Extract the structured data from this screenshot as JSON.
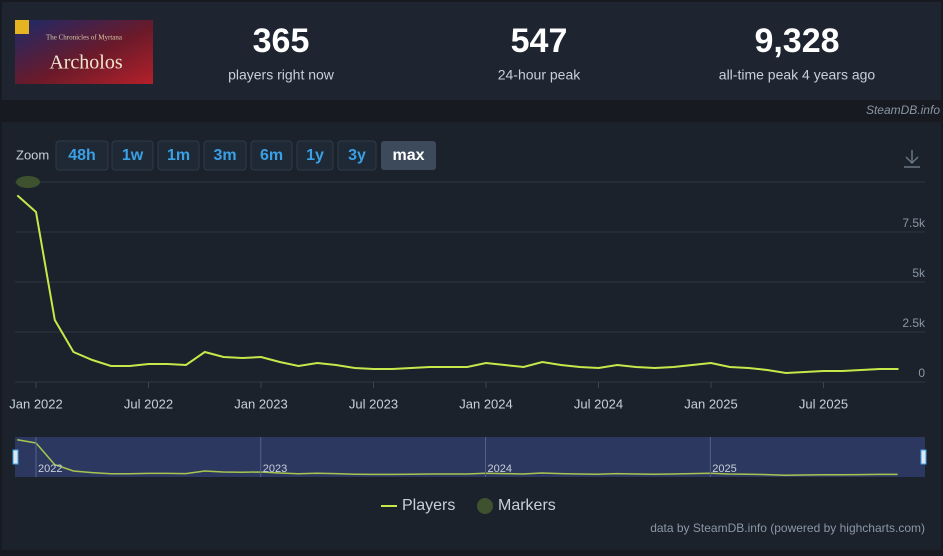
{
  "header": {
    "logo": {
      "subtitle": "The Chronicles of Myrtana",
      "title": "Archolos"
    },
    "stats": [
      {
        "value": "365",
        "label": "players right now"
      },
      {
        "value": "547",
        "label": "24-hour peak"
      },
      {
        "value": "9,328",
        "label": "all-time peak 4 years ago"
      }
    ],
    "source": "SteamDB.info"
  },
  "zoom": {
    "label": "Zoom",
    "buttons": [
      "48h",
      "1w",
      "1m",
      "3m",
      "6m",
      "1y",
      "3y",
      "max"
    ],
    "active_index": 7
  },
  "credit": "data by SteamDB.info (powered by highcharts.com)",
  "chart_data": {
    "type": "line",
    "x": [
      "2021-12",
      "2022-01",
      "2022-02",
      "2022-03",
      "2022-04",
      "2022-05",
      "2022-06",
      "2022-07",
      "2022-08",
      "2022-09",
      "2022-10",
      "2022-11",
      "2022-12",
      "2023-01",
      "2023-02",
      "2023-03",
      "2023-04",
      "2023-05",
      "2023-06",
      "2023-07",
      "2023-08",
      "2023-09",
      "2023-10",
      "2023-11",
      "2023-12",
      "2024-01",
      "2024-02",
      "2024-03",
      "2024-04",
      "2024-05",
      "2024-06",
      "2024-07",
      "2024-08",
      "2024-09",
      "2024-10",
      "2024-11",
      "2024-12",
      "2025-01",
      "2025-02",
      "2025-03",
      "2025-04",
      "2025-05",
      "2025-06",
      "2025-07",
      "2025-08",
      "2025-09",
      "2025-10",
      "2025-11"
    ],
    "series": [
      {
        "name": "Players",
        "color": "#c6e84a",
        "values": [
          9328,
          8500,
          3100,
          1500,
          1100,
          800,
          800,
          900,
          900,
          850,
          1500,
          1250,
          1200,
          1250,
          1000,
          800,
          950,
          850,
          700,
          650,
          650,
          700,
          750,
          750,
          750,
          950,
          850,
          750,
          1000,
          850,
          750,
          700,
          850,
          750,
          700,
          750,
          850,
          950,
          750,
          700,
          600,
          450,
          500,
          550,
          550,
          600,
          650,
          650
        ]
      }
    ],
    "markers": {
      "name": "Markers",
      "color": "#3f5230"
    },
    "ylim": [
      0,
      10000
    ],
    "yticks": [
      0,
      {
        "value": 2500,
        "label": "2.5k"
      },
      {
        "value": 5000,
        "label": "5k"
      },
      {
        "value": 7500,
        "label": "7.5k"
      }
    ],
    "xticks": [
      {
        "value": "2022-01",
        "label": "Jan 2022"
      },
      {
        "value": "2022-07",
        "label": "Jul 2022"
      },
      {
        "value": "2023-01",
        "label": "Jan 2023"
      },
      {
        "value": "2023-07",
        "label": "Jul 2023"
      },
      {
        "value": "2024-01",
        "label": "Jan 2024"
      },
      {
        "value": "2024-07",
        "label": "Jul 2024"
      },
      {
        "value": "2025-01",
        "label": "Jan 2025"
      },
      {
        "value": "2025-07",
        "label": "Jul 2025"
      }
    ],
    "navigator_ticks": [
      {
        "value": "2022-01",
        "label": "2022"
      },
      {
        "value": "2023-01",
        "label": "2023"
      },
      {
        "value": "2024-01",
        "label": "2024"
      },
      {
        "value": "2025-01",
        "label": "2025"
      }
    ],
    "grid": true
  }
}
